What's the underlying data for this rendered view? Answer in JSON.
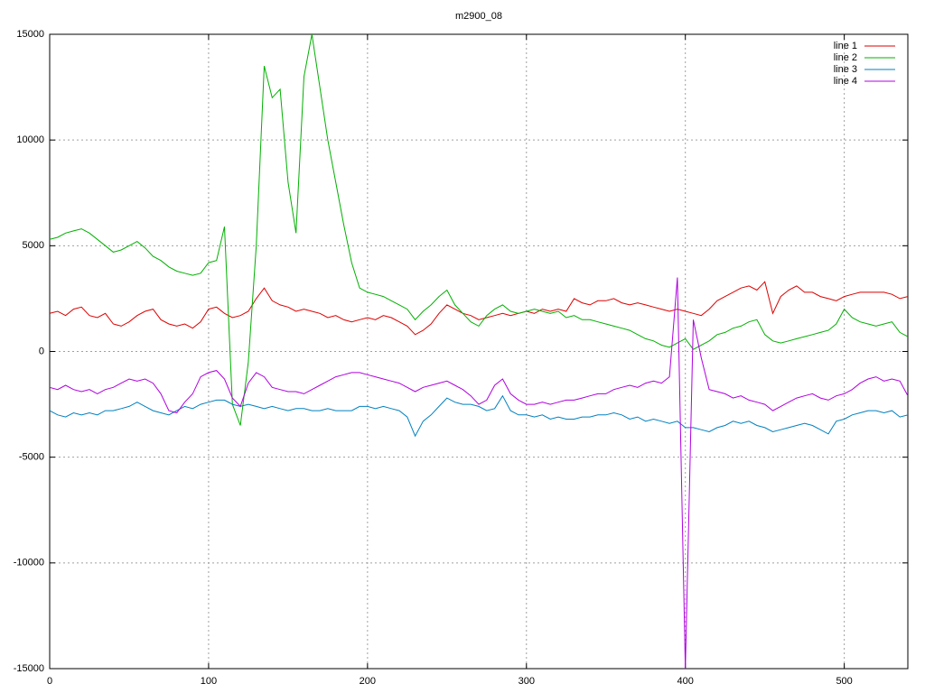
{
  "chart_data": {
    "type": "line",
    "title": "m2900_08",
    "x": [
      0,
      5,
      10,
      15,
      20,
      25,
      30,
      35,
      40,
      45,
      50,
      55,
      60,
      65,
      70,
      75,
      80,
      85,
      90,
      95,
      100,
      105,
      110,
      115,
      120,
      125,
      130,
      135,
      140,
      145,
      150,
      155,
      160,
      165,
      170,
      175,
      180,
      185,
      190,
      195,
      200,
      205,
      210,
      215,
      220,
      225,
      230,
      235,
      240,
      245,
      250,
      255,
      260,
      265,
      270,
      275,
      280,
      285,
      290,
      295,
      300,
      305,
      310,
      315,
      320,
      325,
      330,
      335,
      340,
      345,
      350,
      355,
      360,
      365,
      370,
      375,
      380,
      385,
      390,
      395,
      400,
      405,
      410,
      415,
      420,
      425,
      430,
      435,
      440,
      445,
      450,
      455,
      460,
      465,
      470,
      475,
      480,
      485,
      490,
      495,
      500,
      505,
      510,
      515,
      520,
      525,
      530,
      535,
      540
    ],
    "series": [
      {
        "name": "line 1",
        "color": "#dd0000",
        "values": [
          1800,
          1900,
          1700,
          2000,
          2100,
          1700,
          1600,
          1800,
          1300,
          1200,
          1400,
          1700,
          1900,
          2000,
          1500,
          1300,
          1200,
          1300,
          1100,
          1400,
          2000,
          2100,
          1800,
          1600,
          1700,
          1900,
          2500,
          3000,
          2400,
          2200,
          2100,
          1900,
          2000,
          1900,
          1800,
          1600,
          1700,
          1500,
          1400,
          1500,
          1600,
          1500,
          1700,
          1600,
          1400,
          1200,
          800,
          1000,
          1300,
          1800,
          2200,
          2000,
          1800,
          1700,
          1500,
          1600,
          1700,
          1800,
          1700,
          1800,
          1900,
          1800,
          2000,
          1900,
          2000,
          1900,
          2500,
          2300,
          2200,
          2400,
          2400,
          2500,
          2300,
          2200,
          2300,
          2200,
          2100,
          2000,
          1900,
          2000,
          1900,
          1800,
          1700,
          2000,
          2400,
          2600,
          2800,
          3000,
          3100,
          2900,
          3300,
          1800,
          2600,
          2900,
          3100,
          2800,
          2800,
          2600,
          2500,
          2400,
          2600,
          2700,
          2800,
          2800,
          2800,
          2800,
          2700,
          2500,
          2600
        ]
      },
      {
        "name": "line 2",
        "color": "#00b000",
        "values": [
          5300,
          5400,
          5600,
          5700,
          5800,
          5600,
          5300,
          5000,
          4700,
          4800,
          5000,
          5200,
          4900,
          4500,
          4300,
          4000,
          3800,
          3700,
          3600,
          3700,
          4200,
          4300,
          5900,
          -2500,
          -3500,
          -500,
          5000,
          13500,
          12000,
          12400,
          8000,
          5600,
          13000,
          15000,
          12500,
          10000,
          8000,
          6000,
          4200,
          3000,
          2800,
          2700,
          2600,
          2400,
          2200,
          2000,
          1500,
          1900,
          2200,
          2600,
          2900,
          2200,
          1800,
          1400,
          1200,
          1700,
          2000,
          2200,
          1900,
          1800,
          1900,
          2000,
          1900,
          1800,
          1900,
          1600,
          1700,
          1500,
          1500,
          1400,
          1300,
          1200,
          1100,
          1000,
          800,
          600,
          500,
          300,
          200,
          400,
          600,
          100,
          300,
          500,
          800,
          900,
          1100,
          1200,
          1400,
          1500,
          800,
          500,
          400,
          500,
          600,
          700,
          800,
          900,
          1000,
          1300,
          2000,
          1600,
          1400,
          1300,
          1200,
          1300,
          1400,
          900,
          700
        ]
      },
      {
        "name": "line 3",
        "color": "#0080c0",
        "values": [
          -2800,
          -3000,
          -3100,
          -2900,
          -3000,
          -2900,
          -3000,
          -2800,
          -2800,
          -2700,
          -2600,
          -2400,
          -2600,
          -2800,
          -2900,
          -3000,
          -2800,
          -2600,
          -2700,
          -2500,
          -2400,
          -2300,
          -2300,
          -2500,
          -2600,
          -2500,
          -2600,
          -2700,
          -2600,
          -2700,
          -2800,
          -2700,
          -2700,
          -2800,
          -2800,
          -2700,
          -2800,
          -2800,
          -2800,
          -2600,
          -2600,
          -2700,
          -2600,
          -2700,
          -2800,
          -3100,
          -4000,
          -3300,
          -3000,
          -2600,
          -2200,
          -2400,
          -2500,
          -2500,
          -2600,
          -2800,
          -2700,
          -2100,
          -2800,
          -3000,
          -3000,
          -3100,
          -3000,
          -3200,
          -3100,
          -3200,
          -3200,
          -3100,
          -3100,
          -3000,
          -3000,
          -2900,
          -3000,
          -3200,
          -3100,
          -3300,
          -3200,
          -3300,
          -3400,
          -3300,
          -3600,
          -3600,
          -3700,
          -3800,
          -3600,
          -3500,
          -3300,
          -3400,
          -3300,
          -3500,
          -3600,
          -3800,
          -3700,
          -3600,
          -3500,
          -3400,
          -3500,
          -3700,
          -3900,
          -3300,
          -3200,
          -3000,
          -2900,
          -2800,
          -2800,
          -2900,
          -2800,
          -3100,
          -3000
        ]
      },
      {
        "name": "line 4",
        "color": "#b000e0",
        "values": [
          -1700,
          -1800,
          -1600,
          -1800,
          -1900,
          -1800,
          -2000,
          -1800,
          -1700,
          -1500,
          -1300,
          -1400,
          -1300,
          -1500,
          -2000,
          -2800,
          -2900,
          -2400,
          -2000,
          -1200,
          -1000,
          -900,
          -1300,
          -2200,
          -2600,
          -1500,
          -1000,
          -1200,
          -1700,
          -1800,
          -1900,
          -1900,
          -2000,
          -1800,
          -1600,
          -1400,
          -1200,
          -1100,
          -1000,
          -1000,
          -1100,
          -1200,
          -1300,
          -1400,
          -1500,
          -1700,
          -1900,
          -1700,
          -1600,
          -1500,
          -1400,
          -1600,
          -1800,
          -2100,
          -2500,
          -2300,
          -1600,
          -1300,
          -2000,
          -2300,
          -2500,
          -2500,
          -2400,
          -2500,
          -2400,
          -2300,
          -2300,
          -2200,
          -2100,
          -2000,
          -2000,
          -1800,
          -1700,
          -1600,
          -1700,
          -1500,
          -1400,
          -1500,
          -1200,
          3500,
          -15000,
          1500,
          -300,
          -1800,
          -1900,
          -2000,
          -2200,
          -2100,
          -2300,
          -2400,
          -2500,
          -2800,
          -2600,
          -2400,
          -2200,
          -2100,
          -2000,
          -2200,
          -2300,
          -2100,
          -2000,
          -1800,
          -1500,
          -1300,
          -1200,
          -1400,
          -1300,
          -1400,
          -2100
        ]
      }
    ],
    "xlim": [
      0,
      540
    ],
    "xticks": [
      0,
      100,
      200,
      300,
      400,
      500
    ],
    "ylim": [
      -15000,
      15000
    ],
    "yticks": [
      -15000,
      -10000,
      -5000,
      0,
      5000,
      10000,
      15000
    ],
    "grid": true,
    "legend": "top-right"
  }
}
